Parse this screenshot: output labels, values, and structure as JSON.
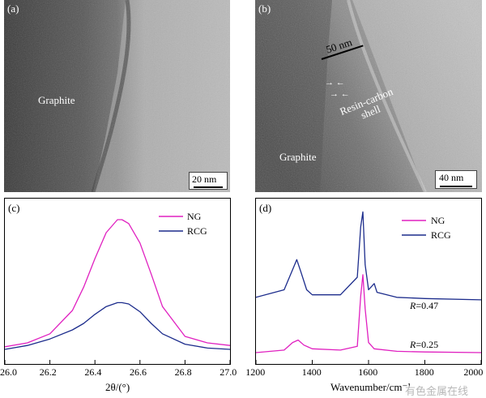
{
  "panel_a": {
    "label": "(a)",
    "annotation": "Graphite",
    "scale_bar": "20 nm"
  },
  "panel_b": {
    "label": "(b)",
    "annotation_graphite": "Graphite",
    "annotation_shell": "Resin-carbon shell",
    "annotation_thickness": "50 nm",
    "scale_bar": "40 nm"
  },
  "chart_data": [
    {
      "type": "line",
      "panel_label": "(c)",
      "xlabel": "2θ/(°)",
      "ylabel": "",
      "xlim": [
        26.0,
        27.0
      ],
      "x_ticks": [
        "26.0",
        "26.2",
        "26.4",
        "26.6",
        "26.8",
        "27.0"
      ],
      "legend_position": "top-right",
      "colors": {
        "NG": "#e020c0",
        "RCG": "#1c2c8c"
      },
      "series": [
        {
          "name": "NG",
          "x": [
            26.0,
            26.1,
            26.2,
            26.3,
            26.35,
            26.4,
            26.45,
            26.5,
            26.52,
            26.55,
            26.6,
            26.65,
            26.7,
            26.8,
            26.9,
            27.0
          ],
          "y": [
            0.02,
            0.05,
            0.12,
            0.3,
            0.48,
            0.7,
            0.9,
            1.0,
            1.0,
            0.97,
            0.82,
            0.58,
            0.33,
            0.1,
            0.05,
            0.03
          ]
        },
        {
          "name": "RCG",
          "x": [
            26.0,
            26.1,
            26.2,
            26.3,
            26.35,
            26.4,
            26.45,
            26.5,
            26.52,
            26.55,
            26.6,
            26.65,
            26.7,
            26.8,
            26.9,
            27.0
          ],
          "y": [
            0.0,
            0.03,
            0.08,
            0.15,
            0.2,
            0.27,
            0.33,
            0.36,
            0.36,
            0.35,
            0.29,
            0.2,
            0.12,
            0.04,
            0.01,
            0.0
          ]
        }
      ]
    },
    {
      "type": "line",
      "panel_label": "(d)",
      "xlabel": "Wavenumber/cm⁻¹",
      "ylabel": "",
      "xlim": [
        1200,
        2000
      ],
      "x_ticks": [
        "1200",
        "1400",
        "1600",
        "1800",
        "2000"
      ],
      "legend_position": "top-right",
      "colors": {
        "NG": "#e020c0",
        "RCG": "#1c2c8c"
      },
      "annotations": [
        {
          "prefix": "R",
          "text": "=0.47"
        },
        {
          "prefix": "R",
          "text": "=0.25"
        }
      ],
      "series": [
        {
          "name": "NG",
          "x": [
            1200,
            1300,
            1330,
            1350,
            1370,
            1400,
            1500,
            1560,
            1572,
            1580,
            1588,
            1600,
            1620,
            1700,
            1800,
            2000
          ],
          "y": [
            0.0,
            0.02,
            0.08,
            0.1,
            0.06,
            0.03,
            0.02,
            0.05,
            0.45,
            0.62,
            0.35,
            0.08,
            0.03,
            0.01,
            0.005,
            0.0
          ]
        },
        {
          "name": "RCG",
          "x": [
            1200,
            1300,
            1330,
            1345,
            1360,
            1380,
            1400,
            1500,
            1560,
            1572,
            1580,
            1588,
            1600,
            1620,
            1630,
            1700,
            1800,
            2000
          ],
          "y": [
            0.44,
            0.5,
            0.66,
            0.74,
            0.64,
            0.5,
            0.46,
            0.46,
            0.6,
            1.0,
            1.12,
            0.7,
            0.5,
            0.55,
            0.48,
            0.44,
            0.43,
            0.42
          ]
        }
      ]
    }
  ],
  "watermark": "有色金属在线"
}
